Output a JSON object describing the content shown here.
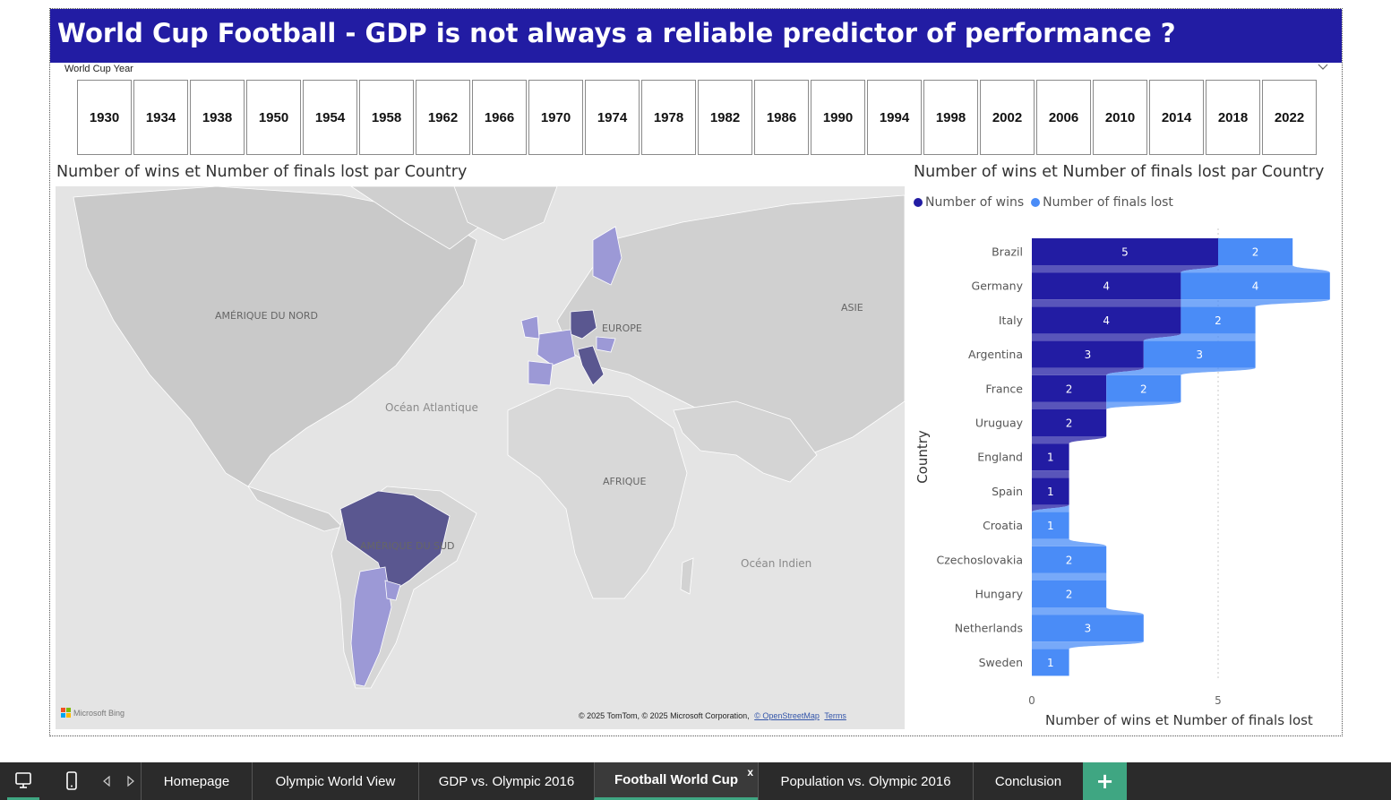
{
  "report_title": "World Cup Football - GDP is not always a reliable predictor of performance ?",
  "slicer": {
    "title": "World Cup Year",
    "years": [
      "1930",
      "1934",
      "1938",
      "1950",
      "1954",
      "1958",
      "1962",
      "1966",
      "1970",
      "1974",
      "1978",
      "1982",
      "1986",
      "1990",
      "1994",
      "1998",
      "2002",
      "2006",
      "2010",
      "2014",
      "2018",
      "2022"
    ]
  },
  "map": {
    "title": "Number of wins et Number of finals lost par Country",
    "labels": {
      "north_america": "AMÉRIQUE DU NORD",
      "europe": "EUROPE",
      "asia": "ASIE",
      "africa": "AFRIQUE",
      "south_america": "AMÉRIQUE DU SUD",
      "atlantic": "Océan Atlantique",
      "indian": "Océan Indien"
    },
    "bing": "Microsoft Bing",
    "attribution": "© 2025 TomTom, © 2025 Microsoft Corporation,",
    "attribution_link": "© OpenStreetMap",
    "terms": "Terms"
  },
  "chart_data": {
    "type": "bar",
    "orientation": "horizontal",
    "stacked": true,
    "title": "Number of wins et Number of finals lost par Country",
    "xlabel": "Number of wins et Number of finals lost",
    "ylabel": "Country",
    "categories": [
      "Brazil",
      "Germany",
      "Italy",
      "Argentina",
      "France",
      "Uruguay",
      "England",
      "Spain",
      "Croatia",
      "Czechoslovakia",
      "Hungary",
      "Netherlands",
      "Sweden"
    ],
    "series": [
      {
        "name": "Number of wins",
        "color": "#221ca3",
        "values": [
          5,
          4,
          4,
          3,
          2,
          2,
          1,
          1,
          0,
          0,
          0,
          0,
          0
        ]
      },
      {
        "name": "Number of finals lost",
        "color": "#4a8cf7",
        "values": [
          2,
          4,
          2,
          3,
          2,
          0,
          0,
          0,
          1,
          2,
          2,
          3,
          1
        ]
      }
    ],
    "xticks": [
      0,
      5
    ],
    "xlim": [
      0,
      8
    ],
    "legend_position": "top-left",
    "grid": true
  },
  "tabs": {
    "items": [
      "Homepage",
      "Olympic World View",
      "GDP vs. Olympic 2016",
      "Football World Cup",
      "Population vs. Olympic 2016",
      "Conclusion"
    ],
    "active": "Football World Cup",
    "close_glyph": "x",
    "add_glyph": "+"
  },
  "colors": {
    "title_bg": "#221ca3",
    "wins": "#221ca3",
    "finals_lost": "#4a8cf7",
    "map_dark": "#5a5790",
    "map_light": "#9c99d6",
    "tab_accent": "#3fa682"
  }
}
